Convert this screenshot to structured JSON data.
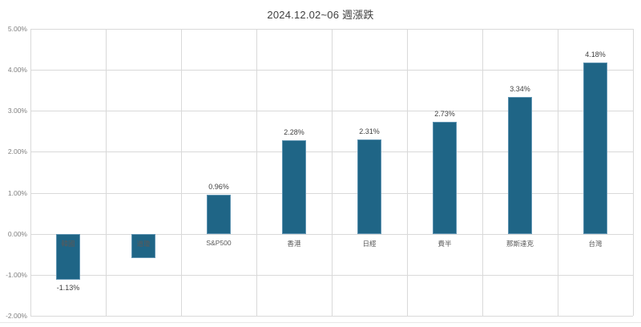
{
  "chart_data": {
    "type": "bar",
    "title": "2024.12.02~06 週漲跌",
    "categories": [
      "韓國",
      "道瓊",
      "S&P500",
      "香港",
      "日經",
      "費半",
      "那斯達克",
      "台灣"
    ],
    "values": [
      -1.13,
      -0.6,
      0.96,
      2.28,
      2.31,
      2.73,
      3.34,
      4.18
    ],
    "value_labels": [
      "-1.13%",
      null,
      "0.96%",
      "2.28%",
      "2.31%",
      "2.73%",
      "3.34%",
      "4.18%"
    ],
    "ylim": [
      -2,
      5
    ],
    "y_tick_step": 1,
    "y_tick_labels": [
      "5.00%",
      "4.00%",
      "3.00%",
      "2.00%",
      "1.00%",
      "0.00%",
      "-1.00%",
      "-2.00%"
    ],
    "grid": true,
    "legend": "none",
    "xlabel": "",
    "ylabel": "",
    "colors": {
      "bar_fill": "#1F6586",
      "bar_border": "#5E93B1",
      "gridline": "#D9D9D9",
      "axis_text": "#7F7F7F",
      "category_text": "#595959",
      "value_text": "#3F3F3F",
      "title_text": "#404040"
    }
  }
}
